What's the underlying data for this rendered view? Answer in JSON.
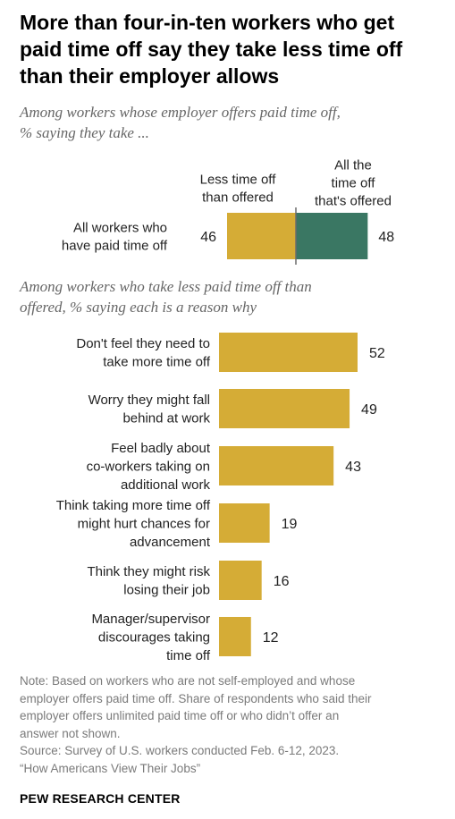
{
  "title_lines": [
    "More than four-in-ten workers who get",
    "paid time off say they take less time off",
    "than their employer allows"
  ],
  "subtitle1_lines": [
    "Among workers whose employer offers paid time off,",
    "% saying they take ..."
  ],
  "subtitle2_lines": [
    "Among workers who take less paid time off than",
    "offered, % saying each is a reason why"
  ],
  "colors": {
    "gold": "#D5AC36",
    "green": "#3A7763",
    "divider": "#6b6b6b",
    "text": "#222222",
    "note": "#7a7a7a"
  },
  "chart_data": [
    {
      "type": "bar",
      "orientation": "horizontal-stacked",
      "categories": [
        [
          "All workers who",
          "have paid time off"
        ]
      ],
      "series": [
        {
          "name": "Less time off than offered",
          "name_lines": [
            "Less time off",
            "than offered"
          ],
          "values": [
            46
          ],
          "color": "#D5AC36"
        },
        {
          "name": "All the time off that's offered",
          "name_lines": [
            "All the",
            "time off",
            "that's offered"
          ],
          "values": [
            48
          ],
          "color": "#3A7763"
        }
      ]
    },
    {
      "type": "bar",
      "orientation": "horizontal",
      "categories": [
        [
          "Don't feel they need to",
          "take more time off"
        ],
        [
          "Worry they might fall",
          "behind at work"
        ],
        [
          "Feel badly about",
          "co-workers taking on",
          "additional work"
        ],
        [
          "Think taking more time off",
          "might hurt chances for",
          "advancement"
        ],
        [
          "Think they might risk",
          "losing their job"
        ],
        [
          "Manager/supervisor",
          "discourages taking",
          "time off"
        ]
      ],
      "values": [
        52,
        49,
        43,
        19,
        16,
        12
      ],
      "color": "#D5AC36"
    }
  ],
  "note_lines": [
    "Note: Based on workers who are not self-employed and whose",
    "employer offers paid time off. Share of respondents who said their",
    "employer offers unlimited paid time off or who didn’t offer an",
    "answer not shown.",
    "Source: Survey of U.S. workers conducted Feb. 6-12, 2023.",
    "“How Americans View Their Jobs”"
  ],
  "brand": "PEW RESEARCH CENTER"
}
